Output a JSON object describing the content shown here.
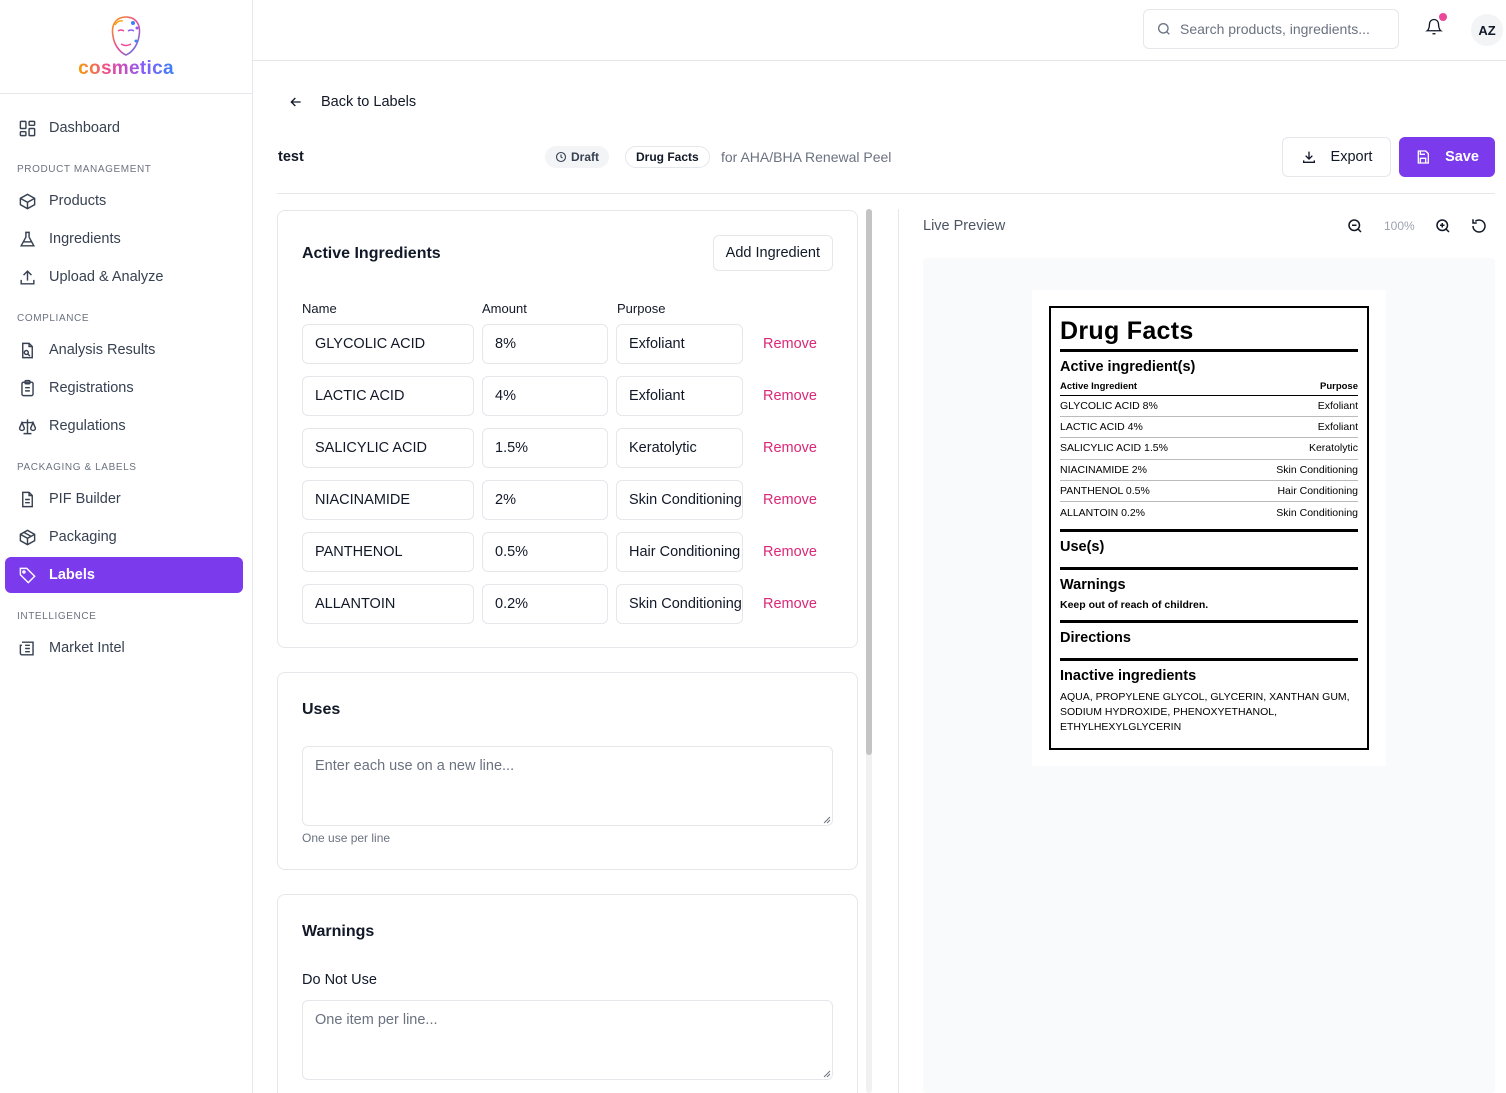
{
  "brand": {
    "name": "cosmetica"
  },
  "sidebar": {
    "top_item": {
      "label": "Dashboard"
    },
    "sections": [
      {
        "title": "PRODUCT MANAGEMENT",
        "items": [
          {
            "label": "Products"
          },
          {
            "label": "Ingredients"
          },
          {
            "label": "Upload & Analyze"
          }
        ]
      },
      {
        "title": "COMPLIANCE",
        "items": [
          {
            "label": "Analysis Results"
          },
          {
            "label": "Registrations"
          },
          {
            "label": "Regulations"
          }
        ]
      },
      {
        "title": "PACKAGING & LABELS",
        "items": [
          {
            "label": "PIF Builder"
          },
          {
            "label": "Packaging"
          },
          {
            "label": "Labels",
            "active": true
          }
        ]
      },
      {
        "title": "INTELLIGENCE",
        "items": [
          {
            "label": "Market Intel"
          }
        ]
      }
    ]
  },
  "topbar": {
    "search_placeholder": "Search products, ingredients...",
    "has_notification": true,
    "avatar_initials": "AZ"
  },
  "header": {
    "back_label": "Back to Labels",
    "label_name": "test",
    "status": "Draft",
    "label_type": "Drug Facts",
    "for_product": "for AHA/BHA Renewal Peel",
    "export_label": "Export",
    "save_label": "Save"
  },
  "active_ingredients": {
    "title": "Active Ingredients",
    "add_label": "Add Ingredient",
    "columns": {
      "name": "Name",
      "amount": "Amount",
      "purpose": "Purpose"
    },
    "remove_label": "Remove",
    "rows": [
      {
        "name": "GLYCOLIC ACID",
        "amount": "8%",
        "purpose": "Exfoliant"
      },
      {
        "name": "LACTIC ACID",
        "amount": "4%",
        "purpose": "Exfoliant"
      },
      {
        "name": "SALICYLIC ACID",
        "amount": "1.5%",
        "purpose": "Keratolytic"
      },
      {
        "name": "NIACINAMIDE",
        "amount": "2%",
        "purpose": "Skin Conditioning"
      },
      {
        "name": "PANTHENOL",
        "amount": "0.5%",
        "purpose": "Hair Conditioning"
      },
      {
        "name": "ALLANTOIN",
        "amount": "0.2%",
        "purpose": "Skin Conditioning"
      }
    ]
  },
  "uses": {
    "title": "Uses",
    "placeholder": "Enter each use on a new line...",
    "hint": "One use per line"
  },
  "warnings": {
    "title": "Warnings",
    "do_not_use_label": "Do Not Use",
    "placeholder": "One item per line..."
  },
  "preview": {
    "title": "Live Preview",
    "zoom": "100%",
    "drug_facts": {
      "title": "Drug Facts",
      "active_heading": "Active ingredient(s)",
      "col_ingredient": "Active Ingredient",
      "col_purpose": "Purpose",
      "rows": [
        {
          "ingredient": "GLYCOLIC ACID 8%",
          "purpose": "Exfoliant"
        },
        {
          "ingredient": "LACTIC ACID 4%",
          "purpose": "Exfoliant"
        },
        {
          "ingredient": "SALICYLIC ACID 1.5%",
          "purpose": "Keratolytic"
        },
        {
          "ingredient": "NIACINAMIDE 2%",
          "purpose": "Skin Conditioning"
        },
        {
          "ingredient": "PANTHENOL 0.5%",
          "purpose": "Hair Conditioning"
        },
        {
          "ingredient": "ALLANTOIN 0.2%",
          "purpose": "Skin Conditioning"
        }
      ],
      "uses_heading": "Use(s)",
      "warnings_heading": "Warnings",
      "warning_text": "Keep out of reach of children.",
      "directions_heading": "Directions",
      "inactive_heading": "Inactive ingredients",
      "inactive_text": "AQUA, PROPYLENE GLYCOL, GLYCERIN, XANTHAN GUM, SODIUM HYDROXIDE, PHENOXYETHANOL, ETHYLHEXYLGLYCERIN"
    }
  },
  "colors": {
    "accent": "#7c3aed",
    "remove": "#db2777",
    "notification": "#ec4899"
  }
}
